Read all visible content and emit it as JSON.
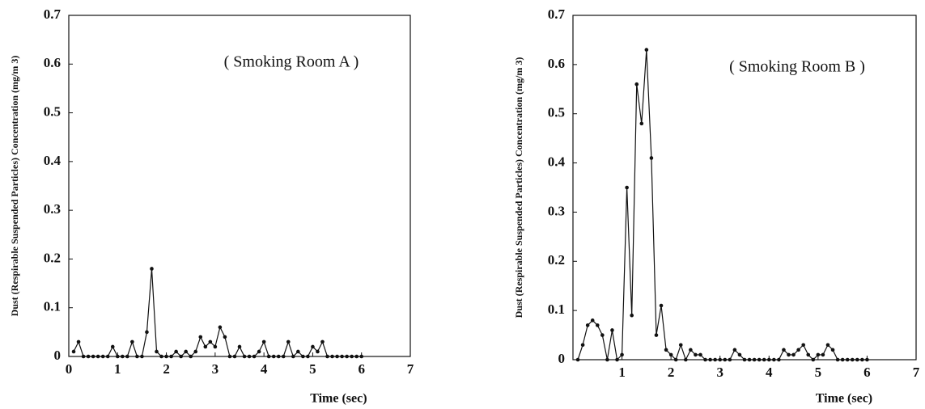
{
  "chart_data": [
    {
      "type": "line",
      "annotation": "( Smoking Room A )",
      "xlabel": "Time  (sec)",
      "ylabel": "Dust (Respirable Suspended Particles) Concentration  (mg/m 3)",
      "x": [
        0.1,
        0.2,
        0.3,
        0.4,
        0.5,
        0.6,
        0.7,
        0.8,
        0.9,
        1.0,
        1.1,
        1.2,
        1.3,
        1.4,
        1.5,
        1.6,
        1.7,
        1.8,
        1.9,
        2.0,
        2.1,
        2.2,
        2.3,
        2.4,
        2.5,
        2.6,
        2.7,
        2.8,
        2.9,
        3.0,
        3.1,
        3.2,
        3.3,
        3.4,
        3.5,
        3.6,
        3.7,
        3.8,
        3.9,
        4.0,
        4.1,
        4.2,
        4.3,
        4.4,
        4.5,
        4.6,
        4.7,
        4.8,
        4.9,
        5.0,
        5.1,
        5.2,
        5.3,
        5.4,
        5.5,
        5.6,
        5.7,
        5.8,
        5.9,
        6.0
      ],
      "series": [
        {
          "color": "#111111",
          "values": [
            0.01,
            0.03,
            0,
            0,
            0,
            0,
            0,
            0,
            0.02,
            0,
            0,
            0,
            0.03,
            0,
            0,
            0.05,
            0.18,
            0.01,
            0,
            0,
            0,
            0.01,
            0,
            0.01,
            0,
            0.01,
            0.04,
            0.02,
            0.03,
            0.02,
            0.06,
            0.04,
            0,
            0,
            0.02,
            0,
            0,
            0,
            0.01,
            0.03,
            0,
            0,
            0,
            0,
            0.03,
            0,
            0.01,
            0,
            0,
            0.02,
            0.01,
            0.03,
            0,
            0,
            0,
            0,
            0,
            0,
            0,
            0
          ]
        }
      ],
      "xlim": [
        0,
        7
      ],
      "xticks": [
        0,
        1,
        2,
        3,
        4,
        5,
        6,
        7
      ],
      "ylim": [
        0,
        0.7
      ],
      "yticks": [
        0,
        0.1,
        0.2,
        0.3,
        0.4,
        0.5,
        0.6,
        0.7
      ]
    },
    {
      "type": "line",
      "annotation": "( Smoking Room B )",
      "xlabel": "Time  (sec)",
      "ylabel": "Dust (Respirable Suspended Particles) Concentration  (mg/m 3)",
      "x": [
        0.1,
        0.2,
        0.3,
        0.4,
        0.5,
        0.6,
        0.7,
        0.8,
        0.9,
        1.0,
        1.1,
        1.2,
        1.3,
        1.4,
        1.5,
        1.6,
        1.7,
        1.8,
        1.9,
        2.0,
        2.1,
        2.2,
        2.3,
        2.4,
        2.5,
        2.6,
        2.7,
        2.8,
        2.9,
        3.0,
        3.1,
        3.2,
        3.3,
        3.4,
        3.5,
        3.6,
        3.7,
        3.8,
        3.9,
        4.0,
        4.1,
        4.2,
        4.3,
        4.4,
        4.5,
        4.6,
        4.7,
        4.8,
        4.9,
        5.0,
        5.1,
        5.2,
        5.3,
        5.4,
        5.5,
        5.6,
        5.7,
        5.8,
        5.9,
        6.0
      ],
      "series": [
        {
          "color": "#111111",
          "values": [
            0,
            0.03,
            0.07,
            0.08,
            0.07,
            0.05,
            0,
            0.06,
            0,
            0.01,
            0.35,
            0.09,
            0.56,
            0.48,
            0.63,
            0.41,
            0.05,
            0.11,
            0.02,
            0.01,
            0,
            0.03,
            0,
            0.02,
            0.01,
            0.01,
            0,
            0,
            0,
            0,
            0,
            0,
            0.02,
            0.01,
            0,
            0,
            0,
            0,
            0,
            0,
            0,
            0,
            0.02,
            0.01,
            0.01,
            0.02,
            0.03,
            0.01,
            0,
            0.01,
            0.01,
            0.03,
            0.02,
            0,
            0,
            0,
            0,
            0,
            0,
            0
          ]
        }
      ],
      "xlim": [
        0,
        7
      ],
      "xticks": [
        1,
        2,
        3,
        4,
        5,
        6,
        7
      ],
      "ylim": [
        0,
        0.7
      ],
      "yticks": [
        0,
        0.1,
        0.2,
        0.3,
        0.4,
        0.5,
        0.6,
        0.7
      ]
    }
  ]
}
